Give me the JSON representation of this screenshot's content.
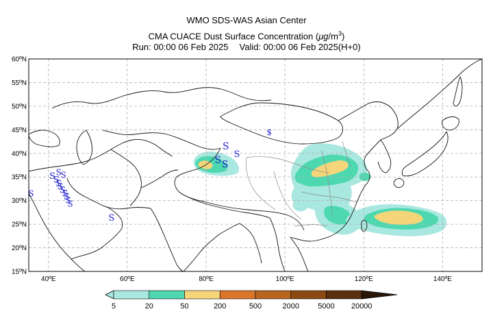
{
  "header": {
    "line1": "WMO SDS-WAS Asian Center",
    "line2_prefix": "CMA CUACE Dust Surface Concentration (",
    "line2_unit_mu": "μg",
    "line2_unit_rest": "/m",
    "line2_sup": "3",
    "line2_suffix": ")",
    "run": "Run: 00:00 06 Feb 2025",
    "valid": "Valid: 00:00 06 Feb 2025(H+0)"
  },
  "map": {
    "lon_range": [
      35,
      150
    ],
    "lat_range": [
      15,
      60
    ],
    "grid": true,
    "lon_ticks": [
      "40ºE",
      "60ºE",
      "80ºE",
      "100ºE",
      "120ºE",
      "140ºE"
    ],
    "lat_ticks": [
      "15ºN",
      "20ºN",
      "25ºN",
      "30ºN",
      "35ºN",
      "40ºN",
      "45ºN",
      "50ºN",
      "55ºN",
      "60ºN"
    ],
    "storm_symbol": "S",
    "weak_symbol": "$"
  },
  "colorbar": {
    "labels": [
      "5",
      "20",
      "50",
      "200",
      "500",
      "2000",
      "5000",
      "20000"
    ],
    "colors": [
      "#a8e8e0",
      "#4ed8b0",
      "#f5d57a",
      "#d9762a",
      "#b8651e",
      "#8a4a12",
      "#5a3010",
      "#2a1606"
    ]
  },
  "colors": {
    "level1": "#a8e8e0",
    "level2": "#4ed8b0",
    "level3": "#f5d57a",
    "storm": "#1f1fd0"
  }
}
